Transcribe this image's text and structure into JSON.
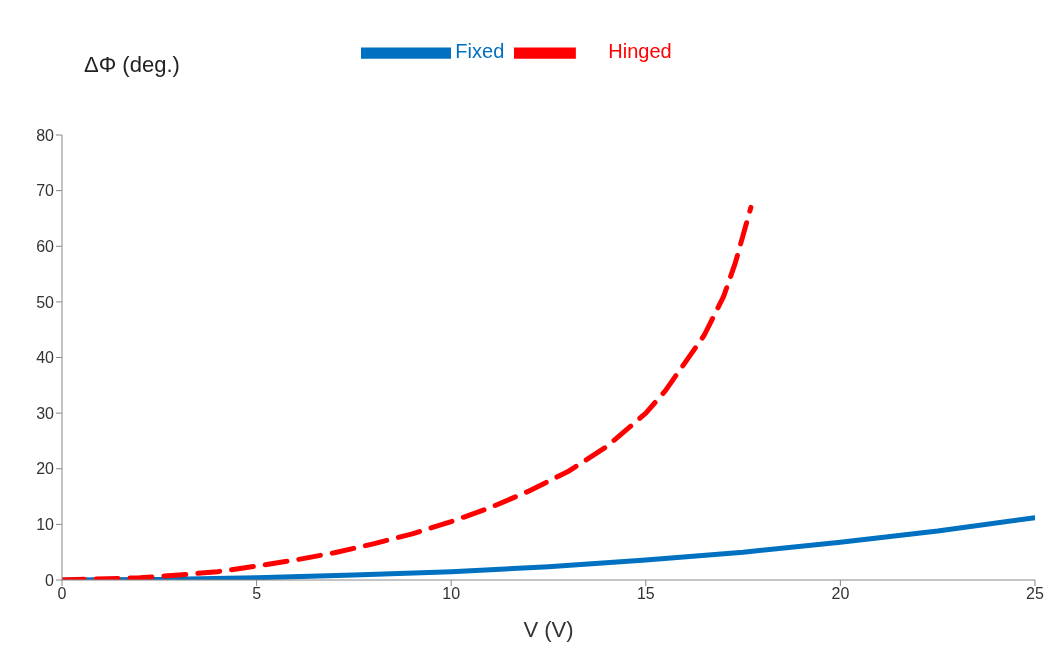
{
  "chart_data": {
    "type": "line",
    "xlabel": "V (V)",
    "ylabel": "ΔΦ (deg.)",
    "xlim": [
      0,
      25
    ],
    "xticks": [
      0,
      5,
      10,
      15,
      20,
      25
    ],
    "ylim": [
      0,
      80
    ],
    "yticks": [
      0,
      10,
      20,
      30,
      40,
      50,
      60,
      70,
      80
    ],
    "legend": "top",
    "grid": false,
    "series": [
      {
        "name": "Fixed",
        "color": "#0070c0",
        "line_style": "solid",
        "x": [
          0,
          2.5,
          5,
          7.5,
          10,
          12.5,
          15,
          17.5,
          20,
          22.5,
          25
        ],
        "values": [
          0,
          0.1,
          0.4,
          0.9,
          1.5,
          2.4,
          3.6,
          5,
          6.8,
          8.8,
          11.2
        ]
      },
      {
        "name": "Hinged",
        "color": "#ff0000",
        "line_style": "dashed",
        "x": [
          0,
          2,
          3,
          4,
          5,
          6,
          7,
          8,
          9,
          10,
          11,
          12,
          13,
          14,
          15,
          15.5,
          16,
          16.5,
          17,
          17.3,
          17.5,
          17.7
        ],
        "values": [
          0,
          0.4,
          0.9,
          1.5,
          2.5,
          3.6,
          4.9,
          6.5,
          8.3,
          10.5,
          13,
          16,
          19.5,
          24,
          30,
          34,
          39,
          44,
          51,
          57,
          62,
          67
        ]
      }
    ]
  }
}
